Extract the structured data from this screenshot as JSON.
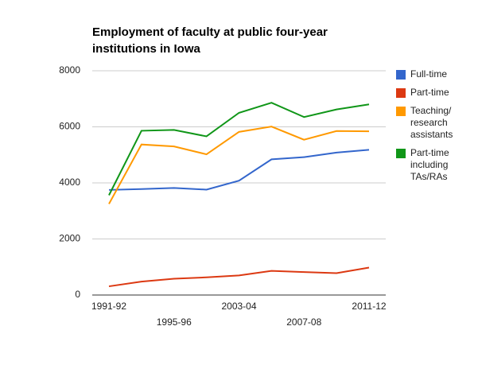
{
  "chart_data": {
    "type": "line",
    "title": "Employment of faculty at public four-year institutions in Iowa",
    "categories": [
      "1991-92",
      null,
      "1995-96",
      null,
      "2003-04",
      null,
      "2007-08",
      null,
      "2011-12"
    ],
    "series": [
      {
        "name": "Full-time",
        "color": "#3366cc",
        "values": [
          3750,
          3780,
          3820,
          3760,
          4080,
          4840,
          4920,
          5080,
          5180
        ]
      },
      {
        "name": "Part-time",
        "color": "#dc3912",
        "values": [
          310,
          480,
          580,
          630,
          700,
          860,
          820,
          780,
          980
        ]
      },
      {
        "name": "Teaching/ research assistants",
        "color": "#ff9900",
        "values": [
          3250,
          5370,
          5300,
          5020,
          5820,
          6010,
          5540,
          5850,
          5840
        ]
      },
      {
        "name": "Part-time including TAs/RAs",
        "color": "#109618",
        "values": [
          3560,
          5860,
          5890,
          5660,
          6500,
          6860,
          6350,
          6620,
          6800
        ]
      }
    ],
    "ylim": [
      0,
      8000
    ],
    "yticks": [
      0,
      2000,
      4000,
      6000,
      8000
    ],
    "grid": true,
    "legend": "right"
  }
}
